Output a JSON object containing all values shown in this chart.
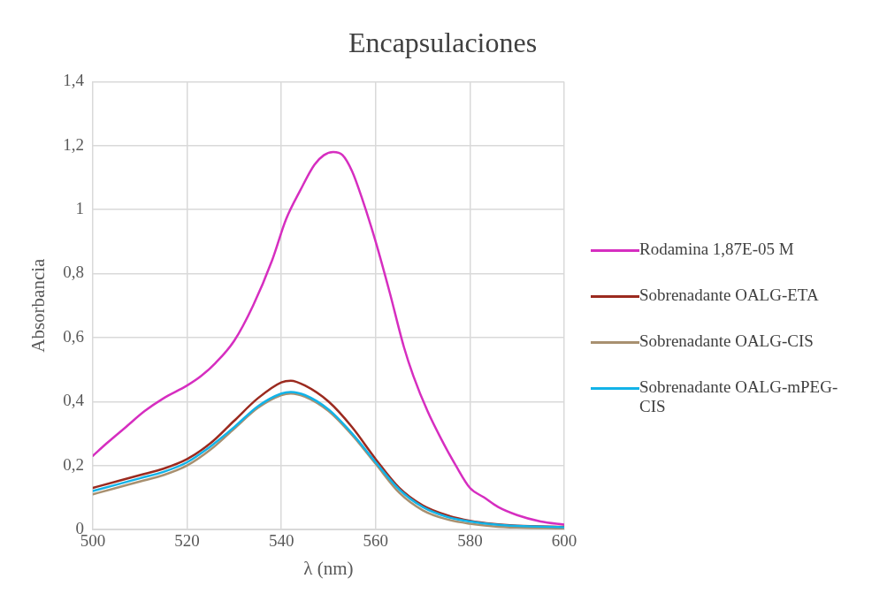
{
  "chart_data": {
    "type": "line",
    "title": "Encapsulaciones",
    "xlabel": "λ (nm)",
    "ylabel": "Absorbancia",
    "xlim": [
      500,
      600
    ],
    "xticks": [
      500,
      520,
      540,
      560,
      580,
      600
    ],
    "ylim": [
      0,
      1.4
    ],
    "yticks": [
      0,
      {
        "value": 0.2,
        "label": "0,2"
      },
      {
        "value": 0.4,
        "label": "0,4"
      },
      {
        "value": 0.6,
        "label": "0,6"
      },
      {
        "value": 0.8,
        "label": "0,8"
      },
      1,
      {
        "value": 1.2,
        "label": "1,2"
      },
      {
        "value": 1.4,
        "label": "1,4"
      }
    ],
    "grid": true,
    "legend": "right",
    "marker": "none",
    "line_style": "solid",
    "series": [
      {
        "name": "Rodamina 1,87E-05 M",
        "color": "#d62ec0",
        "x": [
          500,
          503,
          507,
          511,
          515,
          520,
          523,
          526,
          530,
          534,
          538,
          541,
          544,
          547,
          549,
          551,
          553,
          555,
          557,
          560,
          563,
          566,
          568,
          571,
          574,
          577,
          580,
          583,
          586,
          590,
          595,
          600
        ],
        "values": [
          0.23,
          0.27,
          0.32,
          0.37,
          0.41,
          0.45,
          0.48,
          0.52,
          0.59,
          0.7,
          0.84,
          0.97,
          1.06,
          1.14,
          1.17,
          1.18,
          1.17,
          1.12,
          1.04,
          0.9,
          0.74,
          0.57,
          0.48,
          0.37,
          0.28,
          0.2,
          0.13,
          0.1,
          0.07,
          0.045,
          0.025,
          0.015
        ]
      },
      {
        "name": "Sobrenadante OALG-ETA",
        "color": "#9b2a1f",
        "x": [
          500,
          505,
          510,
          515,
          520,
          525,
          530,
          535,
          540,
          542,
          545,
          550,
          555,
          560,
          565,
          570,
          575,
          580,
          585,
          590,
          600
        ],
        "values": [
          0.13,
          0.15,
          0.17,
          0.19,
          0.22,
          0.27,
          0.34,
          0.41,
          0.46,
          0.465,
          0.45,
          0.4,
          0.32,
          0.22,
          0.13,
          0.075,
          0.045,
          0.027,
          0.017,
          0.012,
          0.008
        ]
      },
      {
        "name": "Sobrenadante OALG-CIS",
        "color": "#a89070",
        "x": [
          500,
          505,
          510,
          515,
          520,
          525,
          530,
          535,
          540,
          542,
          545,
          550,
          555,
          560,
          565,
          570,
          575,
          580,
          585,
          590,
          600
        ],
        "values": [
          0.11,
          0.13,
          0.15,
          0.17,
          0.2,
          0.25,
          0.315,
          0.38,
          0.42,
          0.425,
          0.415,
          0.37,
          0.295,
          0.205,
          0.115,
          0.06,
          0.032,
          0.018,
          0.01,
          0.006,
          0.003
        ]
      },
      {
        "name": "Sobrenadante OALG-mPEG-CIS",
        "color": "#12b3e8",
        "x": [
          500,
          505,
          510,
          515,
          520,
          525,
          530,
          535,
          540,
          542,
          545,
          550,
          555,
          560,
          565,
          570,
          575,
          580,
          585,
          590,
          600
        ],
        "values": [
          0.12,
          0.14,
          0.16,
          0.18,
          0.21,
          0.26,
          0.32,
          0.385,
          0.425,
          0.43,
          0.42,
          0.375,
          0.3,
          0.21,
          0.125,
          0.07,
          0.04,
          0.025,
          0.016,
          0.011,
          0.007
        ]
      }
    ]
  }
}
